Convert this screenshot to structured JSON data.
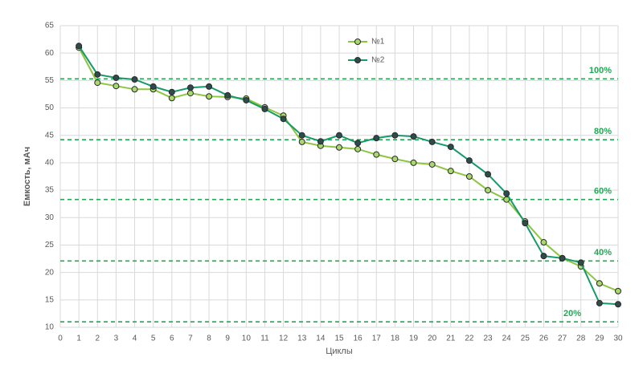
{
  "chart_data": {
    "type": "line",
    "x_label": "Циклы",
    "y_label": "Емкость, мАч",
    "x": [
      1,
      2,
      3,
      4,
      5,
      6,
      7,
      8,
      9,
      10,
      11,
      12,
      13,
      14,
      15,
      16,
      17,
      18,
      19,
      20,
      21,
      22,
      23,
      24,
      25,
      26,
      27,
      28,
      29,
      30
    ],
    "series": [
      {
        "name": "№1",
        "color": "#8cc63e",
        "marker_color": "#a9d86e",
        "values": [
          61.0,
          54.6,
          54.0,
          53.4,
          53.4,
          51.8,
          52.7,
          52.1,
          52.0,
          51.7,
          50.1,
          48.6,
          43.8,
          43.1,
          42.8,
          42.5,
          41.5,
          40.7,
          40.0,
          39.7,
          38.5,
          37.5,
          35.0,
          33.3,
          29.3,
          25.5,
          22.6,
          21.1,
          18.0,
          16.6
        ]
      },
      {
        "name": "№2",
        "color": "#17996a",
        "marker_color": "#2f4b4b",
        "values": [
          61.3,
          56.1,
          55.5,
          55.2,
          53.9,
          52.9,
          53.7,
          53.9,
          52.3,
          51.4,
          49.8,
          48.0,
          45.0,
          43.9,
          45.0,
          43.6,
          44.5,
          45.0,
          44.8,
          43.8,
          42.9,
          40.4,
          37.9,
          34.4,
          29.0,
          23.0,
          22.6,
          21.8,
          14.4,
          14.2
        ]
      }
    ],
    "reference_lines": [
      {
        "value": 55.3,
        "label": "100%"
      },
      {
        "value": 44.2,
        "label": "80%"
      },
      {
        "value": 33.3,
        "label": "60%"
      },
      {
        "value": 22.1,
        "label": "40%"
      },
      {
        "value": 11.0,
        "label": "20%"
      }
    ],
    "reference_color": "#22a855",
    "xlim": [
      0,
      30
    ],
    "xticks": [
      0,
      1,
      2,
      3,
      4,
      5,
      6,
      7,
      8,
      9,
      10,
      11,
      12,
      13,
      14,
      15,
      16,
      17,
      18,
      19,
      20,
      21,
      22,
      23,
      24,
      25,
      26,
      27,
      28,
      29,
      30
    ],
    "ylim": [
      10,
      65
    ],
    "yticks": [
      10,
      15,
      20,
      25,
      30,
      35,
      40,
      45,
      50,
      55,
      60,
      65
    ],
    "grid": true
  }
}
